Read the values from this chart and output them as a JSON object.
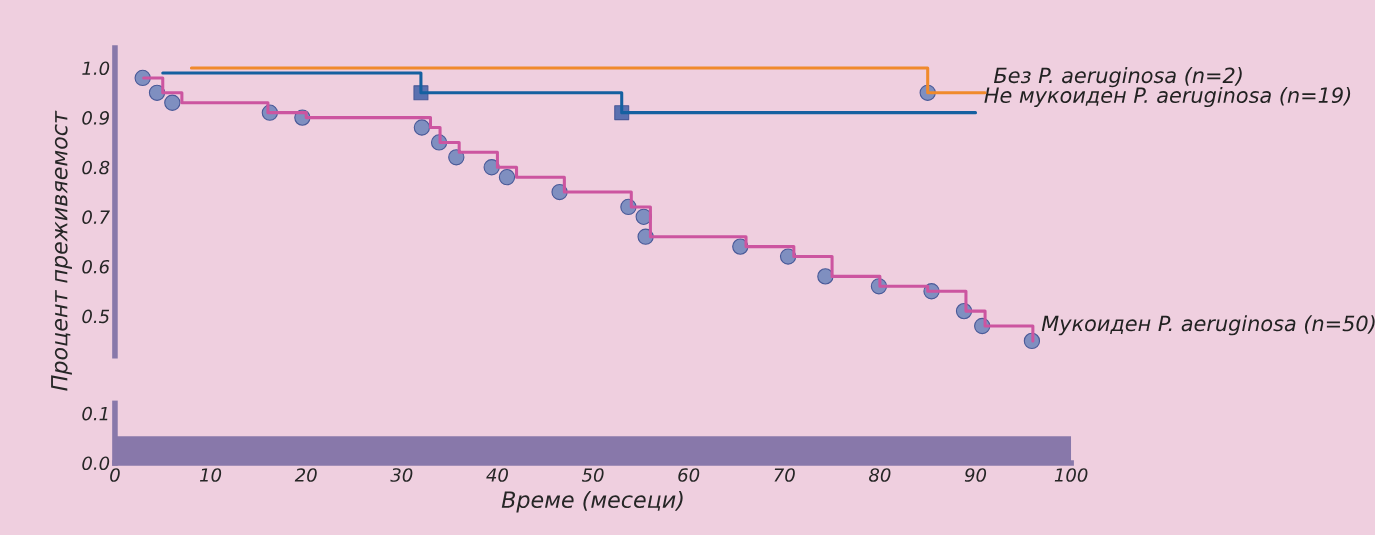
{
  "chart_data": [
    {
      "type": "step",
      "ylabel": "Процент преживяемост",
      "xlim": [
        0,
        100
      ],
      "ylim": [
        0.42,
        1.04
      ],
      "yticks": [
        0.5,
        0.6,
        0.7,
        0.8,
        0.9,
        {
          "value": 1.0,
          "label": "1.0"
        }
      ],
      "tick_labels": "y",
      "grid": false,
      "legend": false,
      "series": [
        {
          "name": "Без P. aeruginosa (n=2)",
          "color": "#f08a2c",
          "x": [
            8,
            85,
            91
          ],
          "values": [
            1.0,
            0.95,
            0.95
          ]
        },
        {
          "name": "Не мукоиден P. aeruginosa (n=19)",
          "color": "#1560a0",
          "x": [
            5,
            32,
            53,
            90
          ],
          "values": [
            0.99,
            0.95,
            0.91,
            0.91
          ]
        },
        {
          "name": "Мукоиден P. aeruginosa (n=50)",
          "color": "#cc55a0",
          "x": [
            3,
            5,
            7,
            16,
            20,
            33,
            34,
            36,
            40,
            42,
            47,
            54,
            56,
            66,
            71,
            75,
            80,
            85,
            89,
            91,
            96
          ],
          "values": [
            0.98,
            0.95,
            0.93,
            0.91,
            0.9,
            0.88,
            0.85,
            0.83,
            0.8,
            0.78,
            0.75,
            0.72,
            0.66,
            0.64,
            0.62,
            0.58,
            0.56,
            0.55,
            0.51,
            0.48,
            0.45
          ]
        },
        {
          "type": "scatter",
          "color": "#7f8fc0",
          "marker": "circle",
          "x": [
            85
          ],
          "values": [
            0.95
          ]
        },
        {
          "type": "scatter",
          "color": "#5a70b0",
          "marker": "square",
          "x": [
            32,
            53
          ],
          "values": [
            0.95,
            0.91
          ]
        },
        {
          "type": "scatter",
          "color": "#7f8fc0",
          "marker": "circle",
          "x": [
            2.9,
            4.4,
            6.0,
            16.2,
            19.6,
            32.1,
            33.9,
            35.7,
            39.4,
            41.0,
            46.5,
            53.7,
            55.3,
            55.5,
            65.4,
            70.4,
            74.3,
            79.9,
            85.4,
            88.8,
            90.7,
            95.9
          ],
          "values": [
            0.98,
            0.95,
            0.93,
            0.91,
            0.9,
            0.88,
            0.85,
            0.82,
            0.8,
            0.78,
            0.75,
            0.72,
            0.7,
            0.66,
            0.64,
            0.62,
            0.58,
            0.56,
            0.55,
            0.51,
            0.48,
            0.45
          ]
        }
      ]
    },
    {
      "type": "line",
      "xlabel": "Време (месеци)",
      "xlim": [
        0,
        100
      ],
      "xticks": [
        0,
        10,
        20,
        30,
        40,
        50,
        60,
        70,
        80,
        90,
        100
      ],
      "ylim": [
        0,
        0.12
      ],
      "yticks": [
        {
          "value": 0.0,
          "label": "0.0"
        },
        0.1
      ],
      "grid": false,
      "legend": false
    }
  ]
}
